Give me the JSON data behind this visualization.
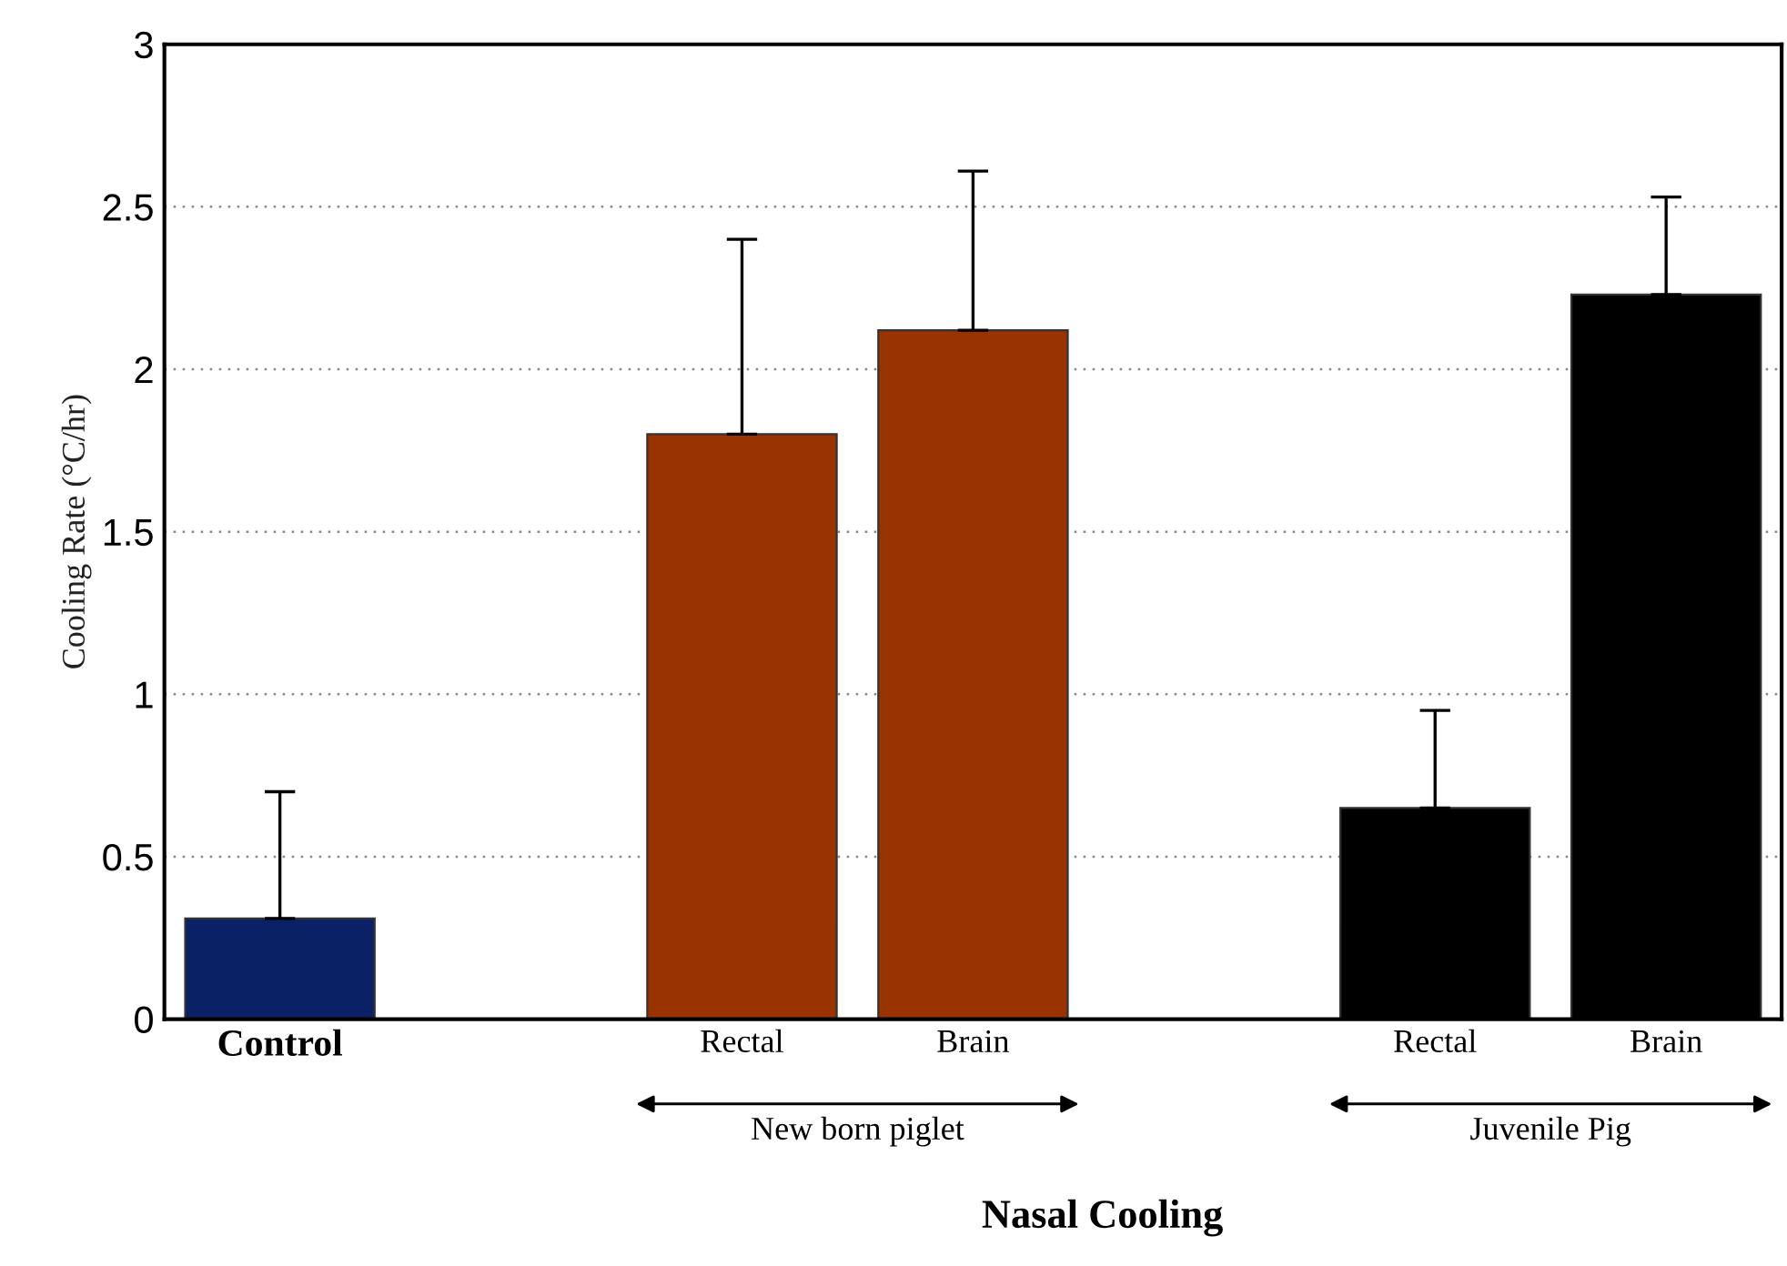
{
  "chart_data": {
    "type": "bar",
    "ylabel": "Cooling Rate (°C/hr)",
    "xlabel": "Nasal Cooling",
    "categories": [
      "Control",
      null,
      "Rectal",
      "Brain",
      null,
      "Rectal",
      "Brain"
    ],
    "values": [
      0.31,
      null,
      1.8,
      2.12,
      null,
      0.65,
      2.23
    ],
    "colors": [
      "#0a2166",
      null,
      "#993300",
      "#993300",
      null,
      "#000000",
      "#000000"
    ],
    "errors": [
      [
        0.31,
        0.7
      ],
      null,
      [
        1.8,
        2.4
      ],
      [
        2.12,
        2.61
      ],
      null,
      [
        0.65,
        0.95
      ],
      [
        2.23,
        2.53
      ]
    ],
    "annotations": [
      "New born piglet",
      "Juvenile Pig"
    ],
    "ylim": [
      0,
      3
    ],
    "yticks": [
      0,
      0.5,
      1,
      1.5,
      2,
      2.5,
      3
    ],
    "grid": "y"
  }
}
